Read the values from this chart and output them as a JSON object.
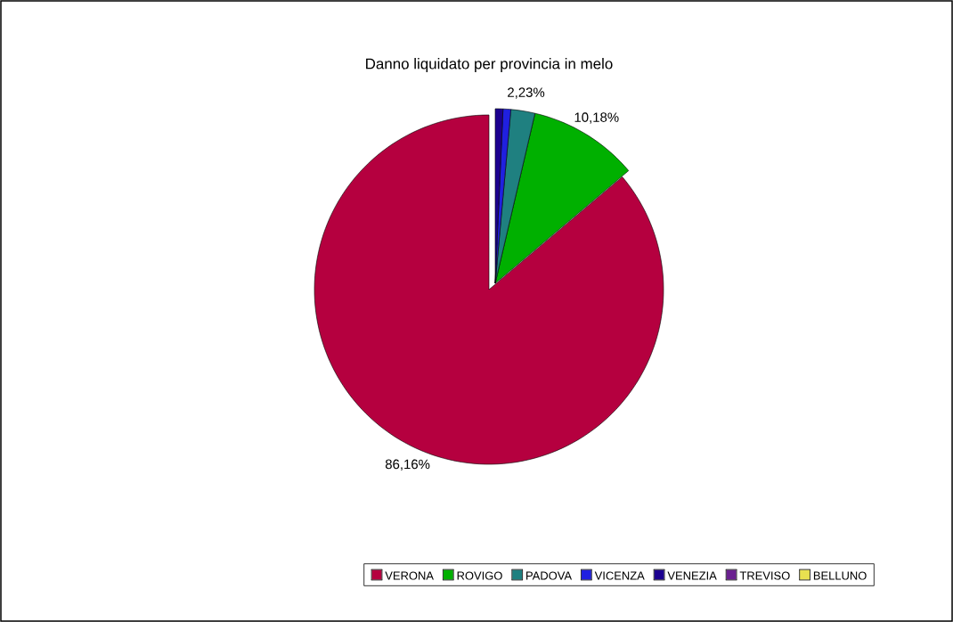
{
  "chart_data": {
    "type": "pie",
    "title": "Danno liquidato per provincia in melo",
    "categories": [
      "VERONA",
      "ROVIGO",
      "PADOVA",
      "VICENZA",
      "VENEZIA",
      "TREVISO",
      "BELLUNO"
    ],
    "values": [
      86.16,
      10.18,
      2.23,
      0.72,
      0.71,
      0,
      0
    ],
    "colors": [
      "#b5003f",
      "#00b000",
      "#1f8080",
      "#2020e0",
      "#1c0090",
      "#6a2090",
      "#e8e050"
    ],
    "value_labels": [
      "86,16%",
      "10,18%",
      "2,23%",
      null,
      null,
      null,
      null
    ],
    "legend": "bottom"
  }
}
